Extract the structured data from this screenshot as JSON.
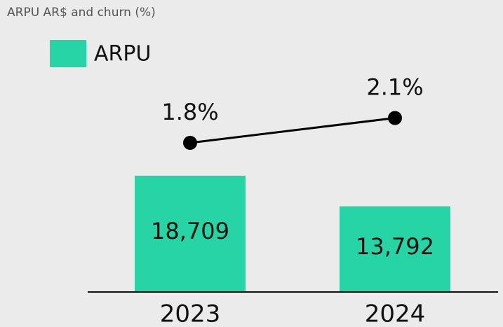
{
  "chart_data": {
    "type": "bar+line",
    "title": "ARPU AR$ and churn (%)",
    "categories": [
      "2023",
      "2024"
    ],
    "series": [
      {
        "name": "ARPU",
        "type": "bar",
        "color": "#26d4a5",
        "values": [
          18709,
          13792
        ],
        "value_labels": [
          "18,709",
          "13,792"
        ]
      },
      {
        "type": "line",
        "axis": "y2",
        "color": "#000000",
        "values": [
          1.8,
          2.1
        ],
        "value_labels": [
          "1.8%",
          "2.1%"
        ]
      }
    ],
    "ylim": [
      0,
      40000
    ],
    "y2lim": [
      0,
      3
    ],
    "legend": "top-left"
  }
}
